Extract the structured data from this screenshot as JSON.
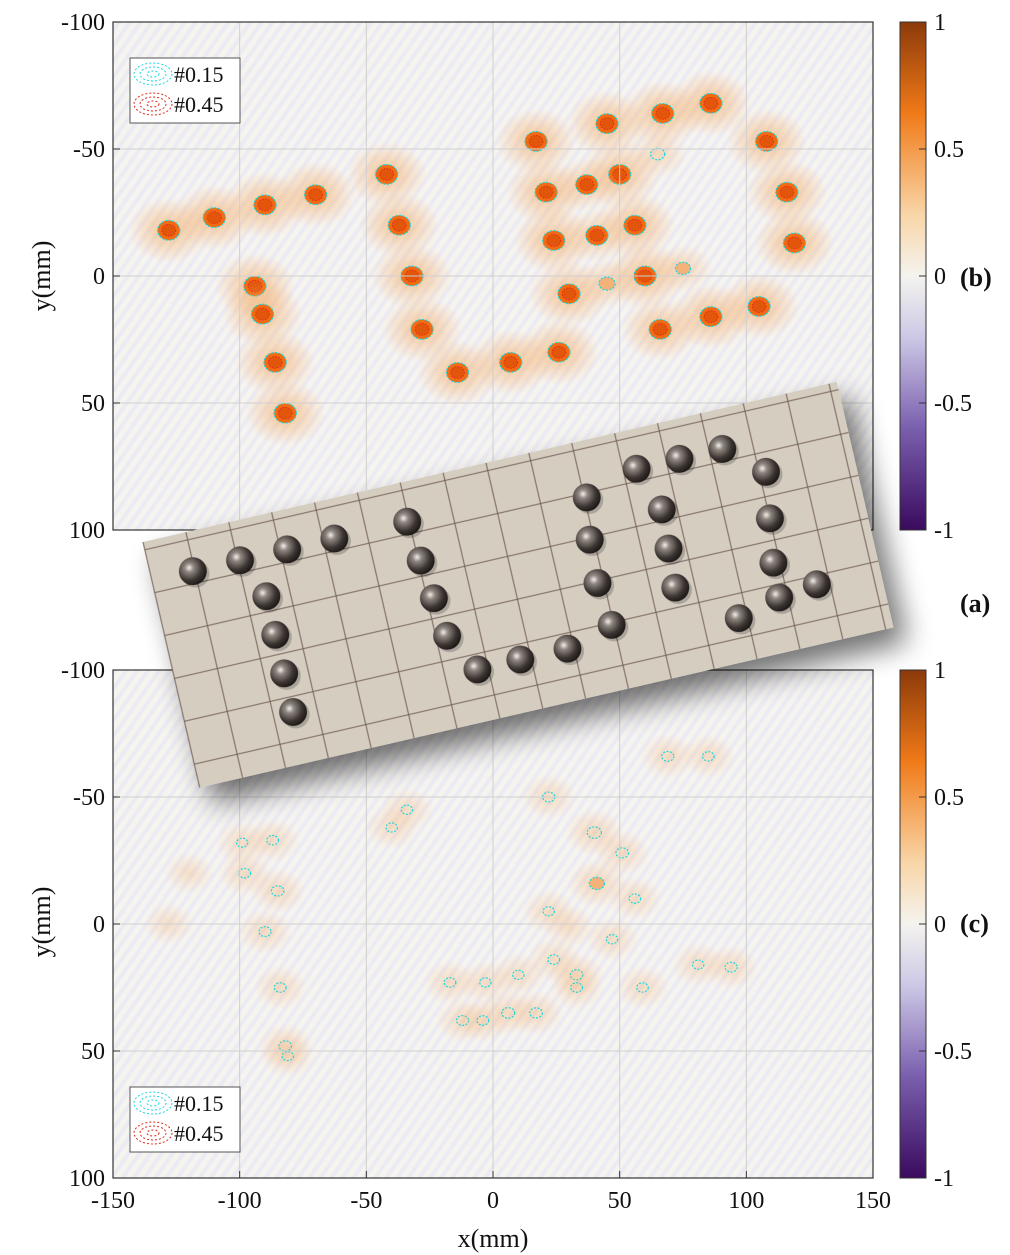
{
  "figure": {
    "panel_labels": {
      "a": "(a)",
      "b": "(b)",
      "c": "(c)"
    }
  },
  "colors": {
    "cmap_neg": "#3a0a5e",
    "cmap_mid": "#f4f3ee",
    "cmap_pos": "#8c3a0a",
    "contour_low": "#18d8e0",
    "contour_high": "#e02a1a",
    "blob_fill": "#f26a12",
    "board": "#d9d0c4",
    "ball": "#4a4340"
  },
  "chart_data": [
    {
      "type": "heatmap",
      "panel": "(b)",
      "xlim": [
        -150,
        150
      ],
      "ylim": [
        -100,
        100
      ],
      "y_reversed": true,
      "xticks": [
        -150,
        -100,
        -50,
        0,
        50,
        100,
        150
      ],
      "yticks": [
        -100,
        -50,
        0,
        50,
        100
      ],
      "ytick_labels": [
        "-100",
        "-50",
        "0",
        "50",
        "100"
      ],
      "xlabel": "",
      "ylabel": "y(mm)",
      "grid": true,
      "colorbar": {
        "ticks": [
          1,
          0.5,
          0,
          -0.5,
          -1
        ],
        "labels": [
          "1",
          "0.5",
          "0",
          "-0.5",
          "-1"
        ],
        "range": [
          -1,
          1
        ]
      },
      "legend": {
        "placement": "top-left",
        "entries": [
          "#0.15",
          "#0.45"
        ]
      },
      "peaks": [
        [
          -128,
          -18,
          1.0
        ],
        [
          -110,
          -23,
          1.0
        ],
        [
          -90,
          -28,
          1.0
        ],
        [
          -70,
          -32,
          1.0
        ],
        [
          -94,
          4,
          1.0
        ],
        [
          -91,
          15,
          1.0
        ],
        [
          -86,
          34,
          1.0
        ],
        [
          -82,
          54,
          1.0
        ],
        [
          -42,
          -40,
          1.0
        ],
        [
          -37,
          -20,
          1.0
        ],
        [
          -32,
          0,
          1.0
        ],
        [
          -28,
          21,
          1.0
        ],
        [
          -14,
          38,
          1.0
        ],
        [
          7,
          34,
          1.0
        ],
        [
          26,
          30,
          1.0
        ],
        [
          17,
          -53,
          1.0
        ],
        [
          45,
          -60,
          1.0
        ],
        [
          67,
          -64,
          1.0
        ],
        [
          86,
          -68,
          1.0
        ],
        [
          108,
          -53,
          1.0
        ],
        [
          116,
          -33,
          1.0
        ],
        [
          119,
          -13,
          1.0
        ],
        [
          105,
          12,
          1.0
        ],
        [
          86,
          16,
          1.0
        ],
        [
          66,
          21,
          0.9
        ],
        [
          21,
          -33,
          1.0
        ],
        [
          50,
          -40,
          1.0
        ],
        [
          24,
          -14,
          1.0
        ],
        [
          56,
          -20,
          1.0
        ],
        [
          30,
          7,
          1.0
        ],
        [
          60,
          0,
          1.0
        ],
        [
          37,
          -36,
          0.55
        ],
        [
          41,
          -16,
          0.55
        ],
        [
          45,
          3,
          0.4
        ],
        [
          75,
          -3,
          0.35
        ],
        [
          65,
          -48,
          0.3
        ]
      ]
    },
    {
      "type": "heatmap",
      "panel": "(c)",
      "xlim": [
        -150,
        150
      ],
      "ylim": [
        -100,
        100
      ],
      "y_reversed": true,
      "xticks": [
        -150,
        -100,
        -50,
        0,
        50,
        100,
        150
      ],
      "xtick_labels": [
        "-150",
        "-100",
        "-50",
        "0",
        "50",
        "100",
        "150"
      ],
      "yticks": [
        -100,
        -50,
        0,
        50,
        100
      ],
      "ytick_labels": [
        "-100",
        "-50",
        "0",
        "50",
        "100"
      ],
      "xlabel": "x(mm)",
      "ylabel": "y(mm)",
      "grid": true,
      "colorbar": {
        "ticks": [
          1,
          0.5,
          0,
          -0.5,
          -1
        ],
        "labels": [
          "1",
          "0.5",
          "0",
          "-0.5",
          "-1"
        ],
        "range": [
          -1,
          1
        ]
      },
      "legend": {
        "placement": "bottom-left",
        "entries": [
          "#0.15",
          "#0.45"
        ]
      },
      "peaks": [
        [
          40,
          -36,
          0.3
        ],
        [
          41,
          -16,
          0.35
        ],
        [
          51,
          -28,
          0.22
        ],
        [
          22,
          -50,
          0.2
        ],
        [
          -85,
          -13,
          0.22
        ],
        [
          -87,
          -33,
          0.18
        ],
        [
          -98,
          -20,
          0.18
        ],
        [
          -99,
          -32,
          0.15
        ],
        [
          -90,
          3,
          0.2
        ],
        [
          -84,
          25,
          0.18
        ],
        [
          -82,
          48,
          0.22
        ],
        [
          -81,
          52,
          0.16
        ],
        [
          -40,
          -38,
          0.16
        ],
        [
          -34,
          -45,
          0.16
        ],
        [
          -17,
          23,
          0.18
        ],
        [
          -12,
          38,
          0.2
        ],
        [
          -4,
          38,
          0.18
        ],
        [
          6,
          35,
          0.24
        ],
        [
          17,
          35,
          0.22
        ],
        [
          -3,
          23,
          0.16
        ],
        [
          10,
          20,
          0.16
        ],
        [
          24,
          14,
          0.18
        ],
        [
          33,
          20,
          0.22
        ],
        [
          33,
          25,
          0.18
        ],
        [
          47,
          6,
          0.16
        ],
        [
          56,
          -10,
          0.17
        ],
        [
          22,
          -5,
          0.16
        ],
        [
          30,
          1,
          0.14
        ],
        [
          59,
          25,
          0.17
        ],
        [
          69,
          -66,
          0.2
        ],
        [
          85,
          -66,
          0.17
        ],
        [
          94,
          17,
          0.2
        ],
        [
          81,
          16,
          0.16
        ],
        [
          -128,
          0,
          0.08
        ],
        [
          -120,
          -20,
          0.08
        ]
      ]
    }
  ],
  "photo": {
    "balls": [
      [
        0.5,
        0.72
      ],
      [
        1.6,
        0.72
      ],
      [
        2.7,
        0.72
      ],
      [
        3.8,
        0.72
      ],
      [
        5.5,
        0.72
      ],
      [
        2.0,
        1.65
      ],
      [
        2.0,
        2.55
      ],
      [
        2.0,
        3.45
      ],
      [
        2.0,
        4.35
      ],
      [
        5.6,
        1.65
      ],
      [
        5.7,
        2.55
      ],
      [
        5.8,
        3.45
      ],
      [
        6.3,
        4.35
      ],
      [
        7.3,
        4.35
      ],
      [
        8.4,
        4.35
      ],
      [
        9.6,
        1.1
      ],
      [
        10.85,
        0.72
      ],
      [
        11.85,
        0.72
      ],
      [
        12.85,
        0.72
      ],
      [
        9.45,
        2.05
      ],
      [
        9.4,
        3.05
      ],
      [
        9.5,
        4.05
      ],
      [
        11.2,
        1.75
      ],
      [
        11.15,
        2.65
      ],
      [
        11.1,
        3.55
      ],
      [
        13.7,
        1.45
      ],
      [
        13.55,
        2.5
      ],
      [
        13.4,
        3.5
      ],
      [
        12.35,
        4.55
      ],
      [
        13.35,
        4.3
      ],
      [
        14.25,
        4.2
      ]
    ]
  }
}
